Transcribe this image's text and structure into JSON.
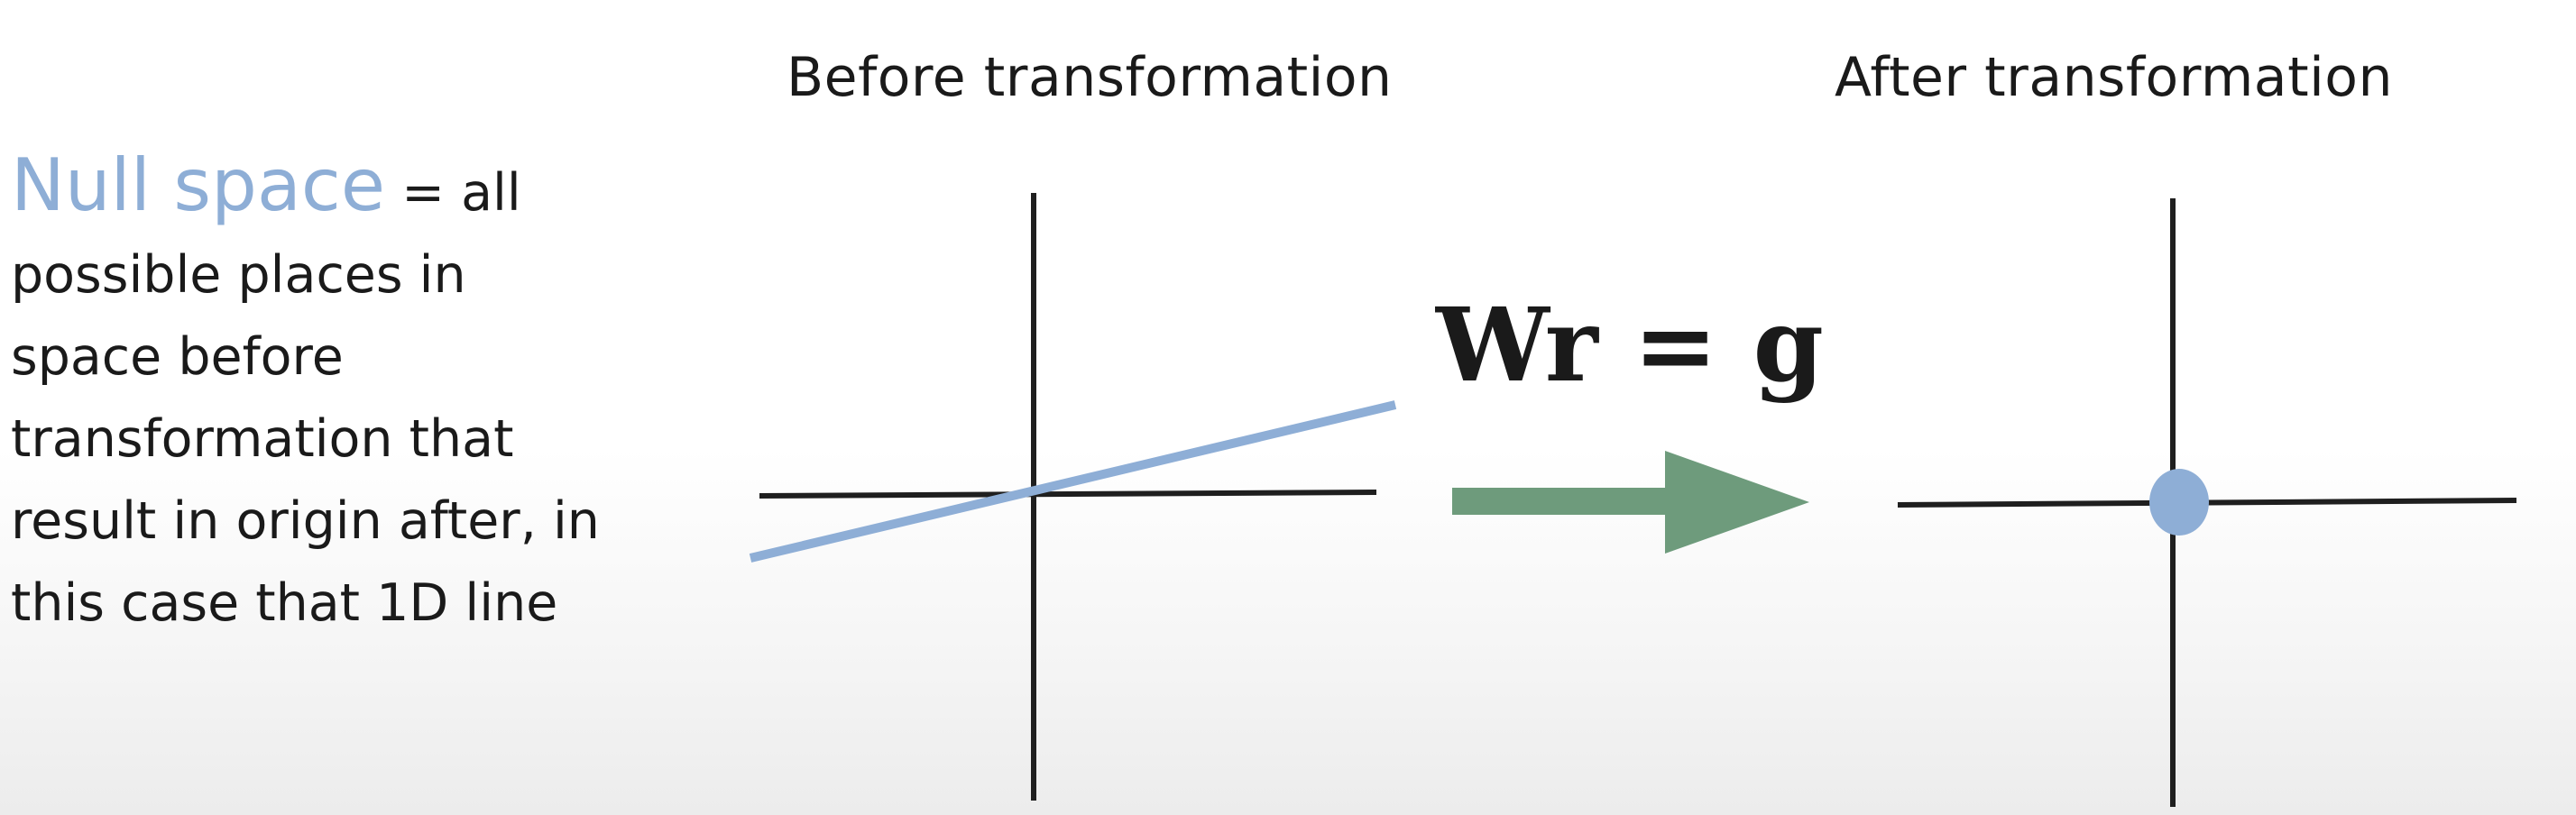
{
  "headings": {
    "before": "Before transformation",
    "after": "After transformation"
  },
  "explanation": {
    "term": "Null space",
    "lines": [
      "= all",
      "possible places in",
      "space before",
      "transformation that",
      "result in origin after, in",
      "this case that 1D line"
    ]
  },
  "equation": "Wr = g",
  "colors": {
    "axes": "#1f1f1f",
    "null_space": "#8eaed6",
    "arrow": "#6e9b7c",
    "origin_point": "#8eaed6",
    "text": "#1a1a1a"
  }
}
